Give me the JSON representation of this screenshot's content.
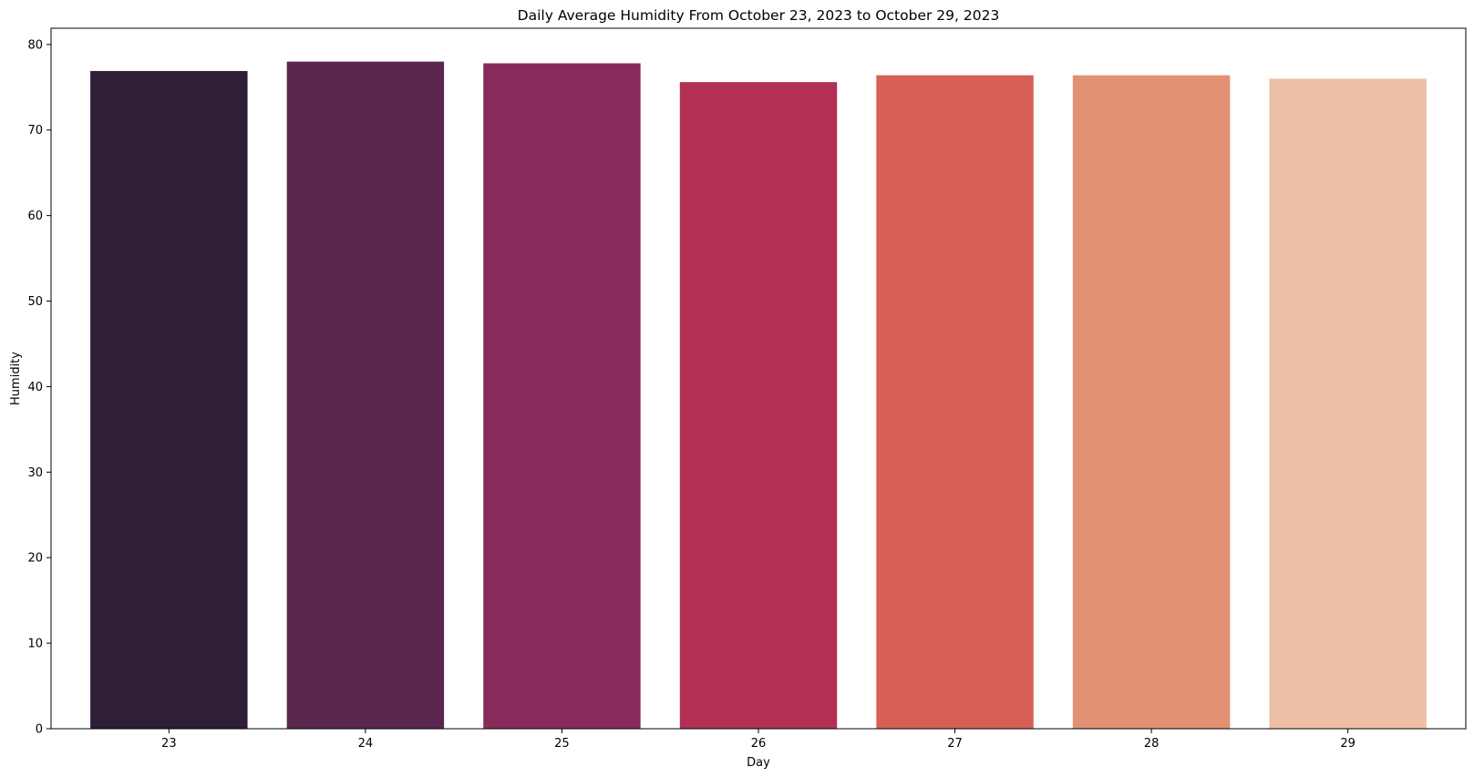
{
  "chart_data": {
    "type": "bar",
    "title": "Daily Average Humidity From October 23, 2023 to October 29, 2023",
    "xlabel": "Day",
    "ylabel": "Humidity",
    "categories": [
      "23",
      "24",
      "25",
      "26",
      "27",
      "28",
      "29"
    ],
    "values": [
      76.9,
      78.0,
      77.8,
      75.6,
      76.4,
      76.4,
      76.0
    ],
    "colors": [
      "#2e1e36",
      "#5b264d",
      "#872b5a",
      "#b33055",
      "#d65f56",
      "#e29172",
      "#ebc0a7"
    ],
    "yticks": [
      0,
      10,
      20,
      30,
      40,
      50,
      60,
      70,
      80
    ],
    "ylim": [
      0,
      81.9
    ],
    "grid": false,
    "legend": "none"
  }
}
